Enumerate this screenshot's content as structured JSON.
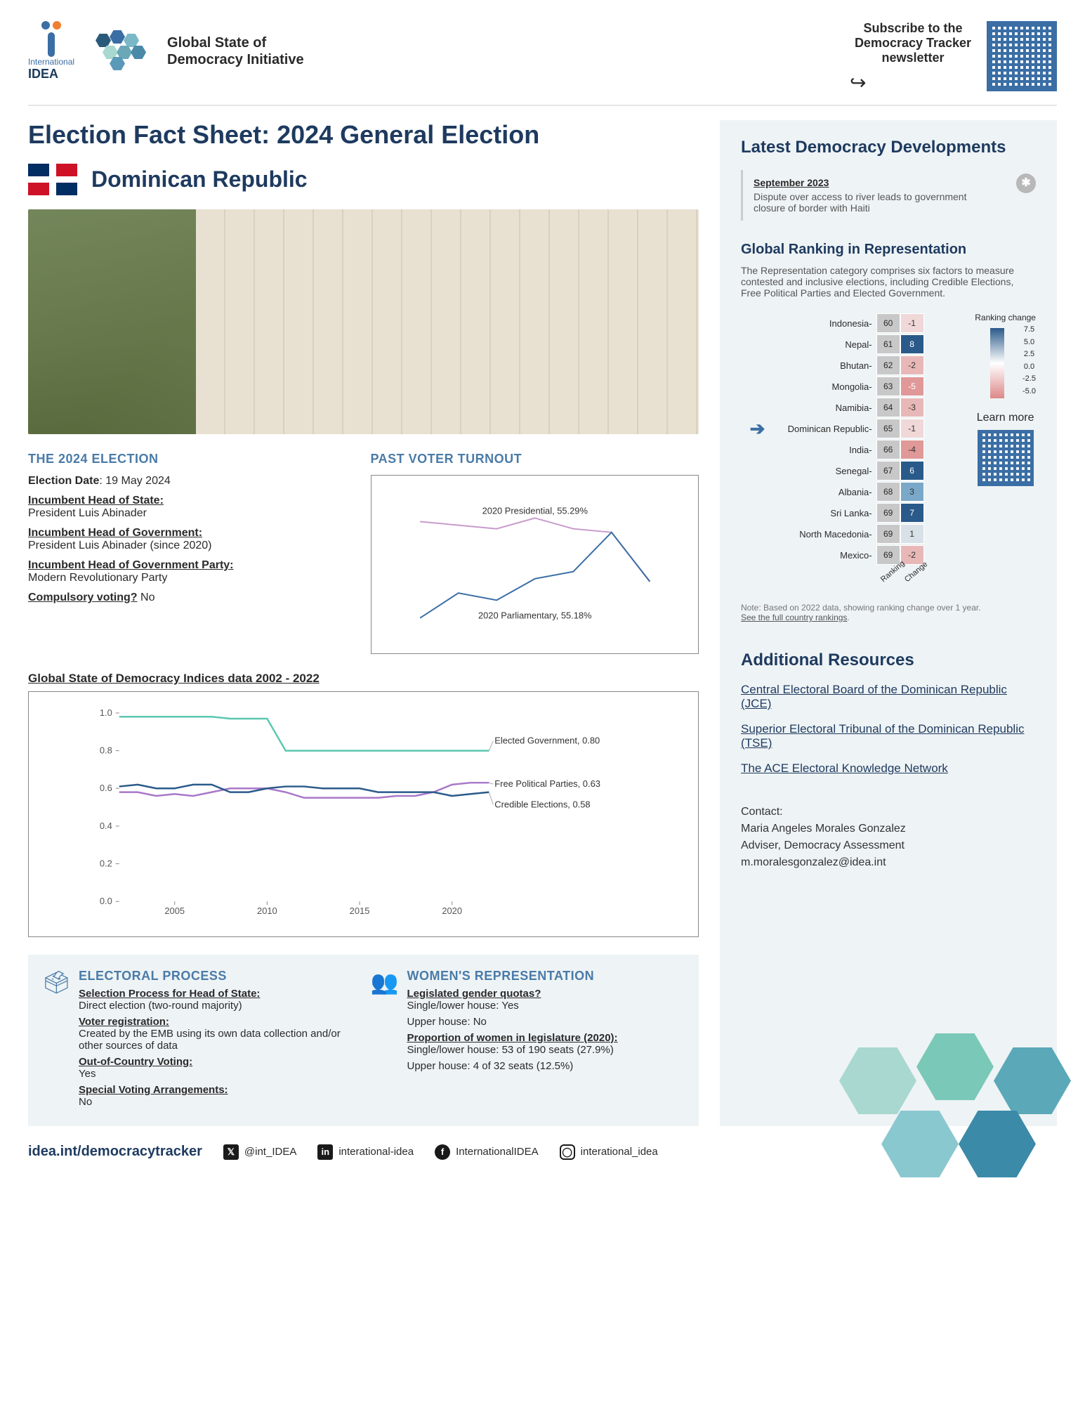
{
  "header": {
    "org_name_top": "International",
    "org_name_bottom": "IDEA",
    "initiative_title": "Global State of\nDemocracy Initiative",
    "subscribe_text": "Subscribe to the Democracy Tracker newsletter",
    "logo_colors": {
      "dot1": "#3a6ea5",
      "dot2": "#f08030",
      "bar": "#3a6ea5"
    },
    "hex_colors": [
      "#2a5a7a",
      "#3a6ea5",
      "#7ab8c8",
      "#a8d8d0",
      "#6aa8b8",
      "#4a8aa8",
      "#5a9ab8"
    ]
  },
  "page_title": "Election Fact Sheet: 2024 General Election",
  "country": "Dominican Republic",
  "election": {
    "heading": "THE 2024 ELECTION",
    "date_label": "Election Date",
    "date_value": "19 May 2024",
    "head_state_label": "Incumbent Head of State:",
    "head_state_value": "President Luis Abinader",
    "head_gov_label": "Incumbent Head of Government:",
    "head_gov_value": "President Luis Abinader (since 2020)",
    "party_label": "Incumbent Head of Government Party:",
    "party_value": "Modern Revolutionary Party",
    "compulsory_label": "Compulsory voting?",
    "compulsory_value": "No"
  },
  "turnout": {
    "heading": "PAST VOTER TURNOUT",
    "series": [
      {
        "name": "Presidential",
        "label": "2020 Presidential, 55.29%",
        "color": "#c89acb",
        "points": [
          [
            0,
            72
          ],
          [
            1,
            71
          ],
          [
            2,
            70
          ],
          [
            3,
            73
          ],
          [
            4,
            70
          ],
          [
            5,
            69
          ],
          [
            6,
            55.29
          ]
        ]
      },
      {
        "name": "Parliamentary",
        "label": "2020 Parliamentary, 55.18%",
        "color": "#3a6ea5",
        "points": [
          [
            0,
            45
          ],
          [
            1,
            52
          ],
          [
            2,
            50
          ],
          [
            3,
            56
          ],
          [
            4,
            58
          ],
          [
            5,
            69
          ],
          [
            6,
            55.18
          ]
        ]
      }
    ],
    "ylim": [
      40,
      80
    ]
  },
  "indices": {
    "title": "Global State of Democracy Indices data 2002 - 2022",
    "xlim": [
      2002,
      2022
    ],
    "ylim": [
      0,
      1
    ],
    "xticks": [
      2005,
      2010,
      2015,
      2020
    ],
    "yticks": [
      0.0,
      0.2,
      0.4,
      0.6,
      0.8,
      1.0
    ],
    "series": [
      {
        "name": "Elected Government",
        "label": "Elected Government, 0.80",
        "color": "#5ac8b0",
        "points": [
          [
            2002,
            0.98
          ],
          [
            2003,
            0.98
          ],
          [
            2004,
            0.98
          ],
          [
            2005,
            0.98
          ],
          [
            2006,
            0.98
          ],
          [
            2007,
            0.98
          ],
          [
            2008,
            0.97
          ],
          [
            2009,
            0.97
          ],
          [
            2010,
            0.97
          ],
          [
            2011,
            0.8
          ],
          [
            2012,
            0.8
          ],
          [
            2013,
            0.8
          ],
          [
            2014,
            0.8
          ],
          [
            2015,
            0.8
          ],
          [
            2016,
            0.8
          ],
          [
            2017,
            0.8
          ],
          [
            2018,
            0.8
          ],
          [
            2019,
            0.8
          ],
          [
            2020,
            0.8
          ],
          [
            2021,
            0.8
          ],
          [
            2022,
            0.8
          ]
        ]
      },
      {
        "name": "Free Political Parties",
        "label": "Free Political Parties, 0.63",
        "color": "#a878c8",
        "points": [
          [
            2002,
            0.58
          ],
          [
            2003,
            0.58
          ],
          [
            2004,
            0.56
          ],
          [
            2005,
            0.57
          ],
          [
            2006,
            0.56
          ],
          [
            2007,
            0.58
          ],
          [
            2008,
            0.6
          ],
          [
            2009,
            0.6
          ],
          [
            2010,
            0.6
          ],
          [
            2011,
            0.58
          ],
          [
            2012,
            0.55
          ],
          [
            2013,
            0.55
          ],
          [
            2014,
            0.55
          ],
          [
            2015,
            0.55
          ],
          [
            2016,
            0.55
          ],
          [
            2017,
            0.56
          ],
          [
            2018,
            0.56
          ],
          [
            2019,
            0.58
          ],
          [
            2020,
            0.62
          ],
          [
            2021,
            0.63
          ],
          [
            2022,
            0.63
          ]
        ]
      },
      {
        "name": "Credible Elections",
        "label": "Credible Elections, 0.58",
        "color": "#2a5a8a",
        "points": [
          [
            2002,
            0.61
          ],
          [
            2003,
            0.62
          ],
          [
            2004,
            0.6
          ],
          [
            2005,
            0.6
          ],
          [
            2006,
            0.62
          ],
          [
            2007,
            0.62
          ],
          [
            2008,
            0.58
          ],
          [
            2009,
            0.58
          ],
          [
            2010,
            0.6
          ],
          [
            2011,
            0.61
          ],
          [
            2012,
            0.61
          ],
          [
            2013,
            0.6
          ],
          [
            2014,
            0.6
          ],
          [
            2015,
            0.6
          ],
          [
            2016,
            0.58
          ],
          [
            2017,
            0.58
          ],
          [
            2018,
            0.58
          ],
          [
            2019,
            0.58
          ],
          [
            2020,
            0.56
          ],
          [
            2021,
            0.57
          ],
          [
            2022,
            0.58
          ]
        ]
      }
    ]
  },
  "electoral_process": {
    "heading": "ELECTORAL PROCESS",
    "selection_label": "Selection Process for Head of State:",
    "selection_value": "Direct election (two-round majority)",
    "registration_label": "Voter registration:",
    "registration_value": "Created by the EMB using its own data collection and/or other sources of data",
    "out_label": "Out-of-Country Voting:",
    "out_value": "Yes",
    "special_label": "Special Voting Arrangements:",
    "special_value": "No"
  },
  "women": {
    "heading": "WOMEN'S REPRESENTATION",
    "quotas_label": "Legislated gender quotas?",
    "quotas_lower": "Single/lower house: Yes",
    "quotas_upper": "Upper house: No",
    "proportion_label": "Proportion of women in legislature (2020):",
    "proportion_lower": "Single/lower house: 53 of  190 seats (27.9%)",
    "proportion_upper": "Upper house: 4 of 32 seats (12.5%)"
  },
  "sidebar": {
    "latest_heading": "Latest Democracy Developments",
    "news_date": "September 2023",
    "news_text": "Dispute over access to river leads to government closure of border with Haiti",
    "ranking_heading": "Global Ranking in Representation",
    "ranking_desc": "The Representation category comprises six factors to measure contested and inclusive elections, including Credible Elections, Free Political Parties and Elected Government.",
    "ranking_rows": [
      {
        "country": "Indonesia",
        "rank": 60,
        "change": -1
      },
      {
        "country": "Nepal",
        "rank": 61,
        "change": 8
      },
      {
        "country": "Bhutan",
        "rank": 62,
        "change": -2
      },
      {
        "country": "Mongolia",
        "rank": 63,
        "change": -5
      },
      {
        "country": "Namibia",
        "rank": 64,
        "change": -3
      },
      {
        "country": "Dominican Republic",
        "rank": 65,
        "change": -1,
        "highlight": true
      },
      {
        "country": "India",
        "rank": 66,
        "change": -4
      },
      {
        "country": "Senegal",
        "rank": 67,
        "change": 6
      },
      {
        "country": "Albania",
        "rank": 68,
        "change": 3
      },
      {
        "country": "Sri Lanka",
        "rank": 69,
        "change": 7
      },
      {
        "country": "North Macedonia",
        "rank": 69,
        "change": 1
      },
      {
        "country": "Mexico",
        "rank": 69,
        "change": -2
      }
    ],
    "legend_label": "Ranking change",
    "legend_ticks": [
      "7.5",
      "5.0",
      "2.5",
      "0.0",
      "-2.5",
      "-5.0"
    ],
    "axis_labels": [
      "Ranking",
      "Change"
    ],
    "learn_more": "Learn more",
    "note": "Note: Based on 2022 data, showing ranking change over 1 year.",
    "note_link": "See the full country rankings",
    "resources_heading": "Additional Resources",
    "resources": [
      "Central Electoral Board of the Dominican Republic (JCE)",
      "Superior Electoral Tribunal of the Dominican Republic (TSE)",
      "The ACE Electoral Knowledge Network"
    ],
    "contact_label": "Contact:",
    "contact_name": "Maria Angeles Morales Gonzalez",
    "contact_title": "Adviser, Democracy Assessment",
    "contact_email": "m.moralesgonzalez@idea.int"
  },
  "footer": {
    "site": "idea.int/democracytracker",
    "twitter": "@int_IDEA",
    "linkedin": "interational-idea",
    "facebook": "InternationalIDEA",
    "instagram": "interational_idea",
    "hex_colors": [
      "#7ac8b8",
      "#a8d8d0",
      "#5aa8b8",
      "#8ac8d0",
      "#3a8aa8"
    ]
  },
  "colors": {
    "primary": "#1e3a5f",
    "accent": "#4a7ba8",
    "rank_cell": "#c8c8c8"
  }
}
